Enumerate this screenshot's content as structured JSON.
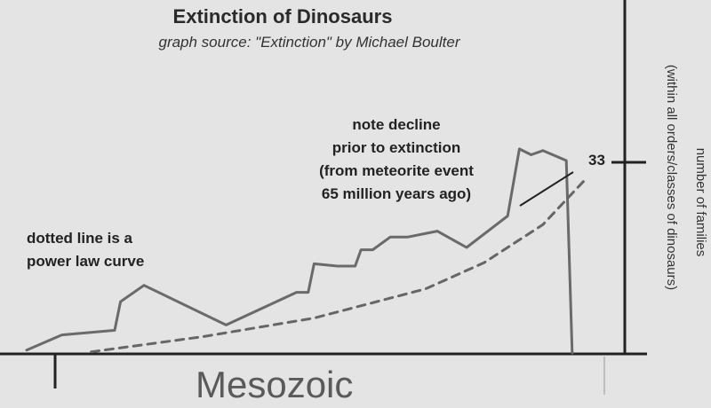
{
  "colors": {
    "background": "#e4e4e4",
    "line": "#6a6a6a",
    "axis": "#222222",
    "curve": "#666666"
  },
  "chart_data": {
    "type": "line",
    "title": "Extinction of Dinosaurs",
    "subtitle": "graph source: \"Extinction\" by Michael Boulter",
    "xlabel": "Mesozoic",
    "ylabel": "number of families",
    "ylabel_note": "(within all orders/classes of dinosaurs)",
    "yticks": [
      33
    ],
    "ylim": [
      0,
      40
    ],
    "xlim": [
      0,
      100
    ],
    "grid": false,
    "series": [
      {
        "style": "solid",
        "x": [
          0,
          6,
          15,
          16,
          20,
          34,
          46,
          48,
          49,
          53,
          56,
          57,
          59,
          62,
          65,
          70,
          75,
          82,
          84,
          86,
          88,
          92,
          93
        ],
        "y": [
          0.5,
          3.1,
          3.9,
          8.8,
          11.6,
          4.8,
          10.4,
          10.4,
          15.3,
          14.9,
          14.9,
          17.7,
          17.7,
          19.9,
          19.9,
          20.9,
          18.1,
          23.5,
          35.0,
          34.0,
          34.7,
          33.0,
          0.0
        ]
      },
      {
        "style": "dashed",
        "x": [
          11,
          30,
          49,
          68,
          78,
          88,
          95
        ],
        "y": [
          0.2,
          2.8,
          6.0,
          11.0,
          15.5,
          22.0,
          29.5
        ]
      }
    ],
    "annotations": [
      {
        "lines": [
          "note decline",
          "prior to extinction",
          "(from meteorite event",
          "65 million years ago)"
        ]
      },
      {
        "lines": [
          "dotted line is a",
          "power law curve"
        ]
      }
    ]
  }
}
